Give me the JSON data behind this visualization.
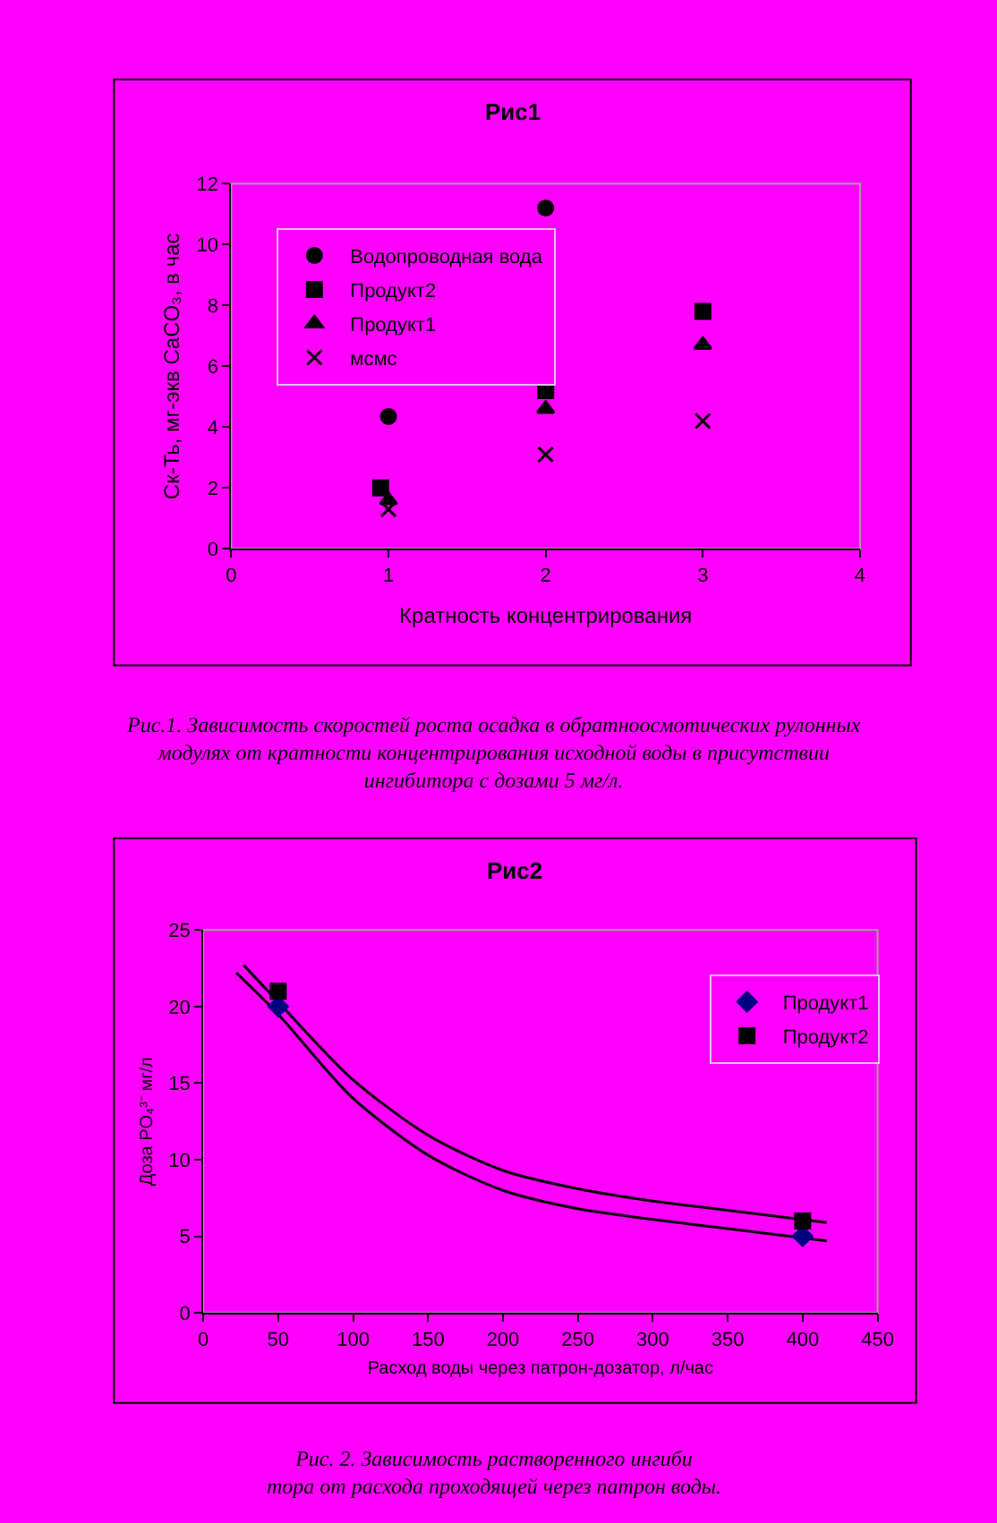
{
  "chart_data": [
    {
      "type": "scatter",
      "title": "Рис1",
      "xlabel": "Кратность концентрирования",
      "ylabel": "Ск-Ть, мг-экв CaCO₃, в час",
      "xlim": [
        0,
        4
      ],
      "xticks": [
        0,
        1,
        2,
        3,
        4
      ],
      "ylim": [
        0,
        12
      ],
      "yticks": [
        0,
        2,
        4,
        6,
        8,
        10,
        12
      ],
      "grid": false,
      "legend": "top left",
      "series": [
        {
          "name": "Водопроводная вода",
          "color": "#000000",
          "marker": "circle",
          "x": [
            1,
            2
          ],
          "values": [
            4.35,
            11.2
          ]
        },
        {
          "name": "Продукт2",
          "color": "#000000",
          "marker": "square",
          "x": [
            0.95,
            2,
            3
          ],
          "values": [
            2.0,
            5.2,
            7.8
          ]
        },
        {
          "name": "Продукт1",
          "color": "#000000",
          "marker": "triangle",
          "x": [
            1,
            2,
            3
          ],
          "values": [
            1.6,
            4.6,
            6.7
          ]
        },
        {
          "name": "мсмс",
          "color": "#000000",
          "marker": "cross",
          "x": [
            1,
            2,
            3
          ],
          "values": [
            1.3,
            3.1,
            4.2
          ]
        }
      ],
      "annotations": [
        "Рис.1. Зависимость скоростей роста осадка в обратноосмотических рулонных\nмодулях от кратности концентрирования исходной воды в присутствии\nингибитора с дозами 5 мг/л."
      ]
    },
    {
      "type": "scatter",
      "title": "Рис2",
      "xlabel": "Расход воды через патрон-дозатор, л/час",
      "ylabel": "Доза PO₄³⁻ мг/л",
      "xlim": [
        0,
        450
      ],
      "xticks": [
        0,
        50,
        100,
        150,
        200,
        250,
        300,
        350,
        400,
        450
      ],
      "ylim": [
        0,
        25
      ],
      "yticks": [
        0,
        5,
        10,
        15,
        20,
        25
      ],
      "grid": false,
      "legend": "top right",
      "series": [
        {
          "type": "line",
          "color": "#000000",
          "marker": "none",
          "x": [
            22,
            50,
            99,
            150,
            200,
            250,
            300,
            350,
            416
          ],
          "values": [
            22.2,
            19.5,
            14.1,
            10.3,
            8.0,
            6.8,
            6.1,
            5.5,
            4.7
          ]
        },
        {
          "type": "line",
          "color": "#000000",
          "marker": "none",
          "x": [
            27,
            50,
            99,
            150,
            200,
            250,
            300,
            350,
            416
          ],
          "values": [
            22.7,
            20.3,
            15.3,
            11.6,
            9.3,
            8.1,
            7.3,
            6.7,
            5.9
          ]
        },
        {
          "name": "Продукт1",
          "color": "#000080",
          "marker": "diamond",
          "x": [
            50,
            400
          ],
          "values": [
            20,
            5
          ]
        },
        {
          "name": "Продукт2",
          "color": "#000000",
          "marker": "square",
          "x": [
            50,
            400
          ],
          "values": [
            21,
            6
          ]
        }
      ],
      "annotations": [
        "Рис. 2. Зависимость растворенного ингиби\nтора от расхода проходящей через патрон воды."
      ]
    }
  ]
}
